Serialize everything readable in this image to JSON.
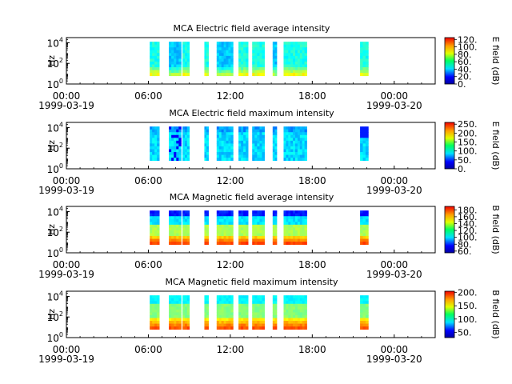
{
  "chart_data": [
    {
      "type": "heatmap",
      "title": "MCA  Electric field average intensity",
      "ylabel": "Hz",
      "yscale": "log",
      "ylim_exp": [
        0,
        4.5
      ],
      "ytick_exps": [
        "0",
        "2",
        "4"
      ],
      "ytick_base": "10",
      "xlim": [
        "1999-03-19 00:00",
        "1999-03-20 03:00"
      ],
      "xticks": [
        {
          "hour": 0,
          "label": "00:00",
          "date": "1999-03-19"
        },
        {
          "hour": 6,
          "label": "06:00"
        },
        {
          "hour": 12,
          "label": "12:00"
        },
        {
          "hour": 18,
          "label": "18:00"
        },
        {
          "hour": 24,
          "label": "00:00",
          "date": "1999-03-20"
        }
      ],
      "colorbar_label": "E field (dB)",
      "colorbar_ticks": [
        "0.",
        "20.",
        "40.",
        "60.",
        "80.",
        "100.",
        "120."
      ],
      "colorbar_range": [
        0,
        125
      ],
      "data_intervals_hours": [
        [
          6.1,
          6.8
        ],
        [
          7.5,
          8.4
        ],
        [
          8.5,
          9.0
        ],
        [
          10.1,
          10.4
        ],
        [
          11.0,
          12.2
        ],
        [
          12.6,
          13.3
        ],
        [
          13.6,
          14.5
        ],
        [
          15.1,
          15.4
        ],
        [
          15.9,
          17.6
        ],
        [
          21.5,
          22.1
        ]
      ],
      "profile": "e_avg"
    },
    {
      "type": "heatmap",
      "title": "MCA  Electric field maximum intensity",
      "ylabel": "Hz",
      "yscale": "log",
      "ylim_exp": [
        0,
        4.5
      ],
      "ytick_exps": [
        "0",
        "2",
        "4"
      ],
      "ytick_base": "10",
      "xlim": [
        "1999-03-19 00:00",
        "1999-03-20 03:00"
      ],
      "xticks": [
        {
          "hour": 0,
          "label": "00:00",
          "date": "1999-03-19"
        },
        {
          "hour": 6,
          "label": "06:00"
        },
        {
          "hour": 12,
          "label": "12:00"
        },
        {
          "hour": 18,
          "label": "18:00"
        },
        {
          "hour": 24,
          "label": "00:00",
          "date": "1999-03-20"
        }
      ],
      "colorbar_label": "E field (dB)",
      "colorbar_ticks": [
        "0.",
        "50.",
        "100.",
        "150.",
        "200.",
        "250."
      ],
      "colorbar_range": [
        0,
        260
      ],
      "data_intervals_hours": [
        [
          6.1,
          6.8
        ],
        [
          7.5,
          8.4
        ],
        [
          8.5,
          9.0
        ],
        [
          10.1,
          10.4
        ],
        [
          11.0,
          12.2
        ],
        [
          12.6,
          13.3
        ],
        [
          13.6,
          14.5
        ],
        [
          15.1,
          15.4
        ],
        [
          15.9,
          17.6
        ],
        [
          21.5,
          22.1
        ]
      ],
      "profile": "e_max"
    },
    {
      "type": "heatmap",
      "title": "MCA  Magnetic field average intensity",
      "ylabel": "Hz",
      "yscale": "log",
      "ylim_exp": [
        0,
        4.5
      ],
      "ytick_exps": [
        "0",
        "2",
        "4"
      ],
      "ytick_base": "10",
      "xlim": [
        "1999-03-19 00:00",
        "1999-03-20 03:00"
      ],
      "xticks": [
        {
          "hour": 0,
          "label": "00:00",
          "date": "1999-03-19"
        },
        {
          "hour": 6,
          "label": "06:00"
        },
        {
          "hour": 12,
          "label": "12:00"
        },
        {
          "hour": 18,
          "label": "18:00"
        },
        {
          "hour": 24,
          "label": "00:00",
          "date": "1999-03-20"
        }
      ],
      "colorbar_label": "B field (dB)",
      "colorbar_ticks": [
        "60.",
        "80.",
        "100.",
        "120.",
        "140.",
        "160.",
        "180."
      ],
      "colorbar_range": [
        55,
        190
      ],
      "data_intervals_hours": [
        [
          6.1,
          6.8
        ],
        [
          7.5,
          8.4
        ],
        [
          8.5,
          9.0
        ],
        [
          10.1,
          10.4
        ],
        [
          11.0,
          12.2
        ],
        [
          12.6,
          13.3
        ],
        [
          13.6,
          14.5
        ],
        [
          15.1,
          15.4
        ],
        [
          15.9,
          17.6
        ],
        [
          21.5,
          22.1
        ]
      ],
      "profile": "b_avg"
    },
    {
      "type": "heatmap",
      "title": "MCA  Magnetic field maximum intensity",
      "ylabel": "Hz",
      "yscale": "log",
      "ylim_exp": [
        0,
        4.5
      ],
      "ytick_exps": [
        "0",
        "2",
        "4"
      ],
      "ytick_base": "10",
      "xlim": [
        "1999-03-19 00:00",
        "1999-03-20 03:00"
      ],
      "xticks": [
        {
          "hour": 0,
          "label": "00:00",
          "date": "1999-03-19"
        },
        {
          "hour": 6,
          "label": "06:00"
        },
        {
          "hour": 12,
          "label": "12:00"
        },
        {
          "hour": 18,
          "label": "18:00"
        },
        {
          "hour": 24,
          "label": "00:00",
          "date": "1999-03-20"
        }
      ],
      "colorbar_label": "B field (dB)",
      "colorbar_ticks": [
        "50.",
        "100.",
        "150.",
        "200."
      ],
      "colorbar_range": [
        30,
        205
      ],
      "data_intervals_hours": [
        [
          6.1,
          6.8
        ],
        [
          7.5,
          8.4
        ],
        [
          8.5,
          9.0
        ],
        [
          10.1,
          10.4
        ],
        [
          11.0,
          12.2
        ],
        [
          12.6,
          13.3
        ],
        [
          13.6,
          14.5
        ],
        [
          15.1,
          15.4
        ],
        [
          15.9,
          17.6
        ],
        [
          21.5,
          22.1
        ]
      ],
      "profile": "b_max"
    }
  ]
}
